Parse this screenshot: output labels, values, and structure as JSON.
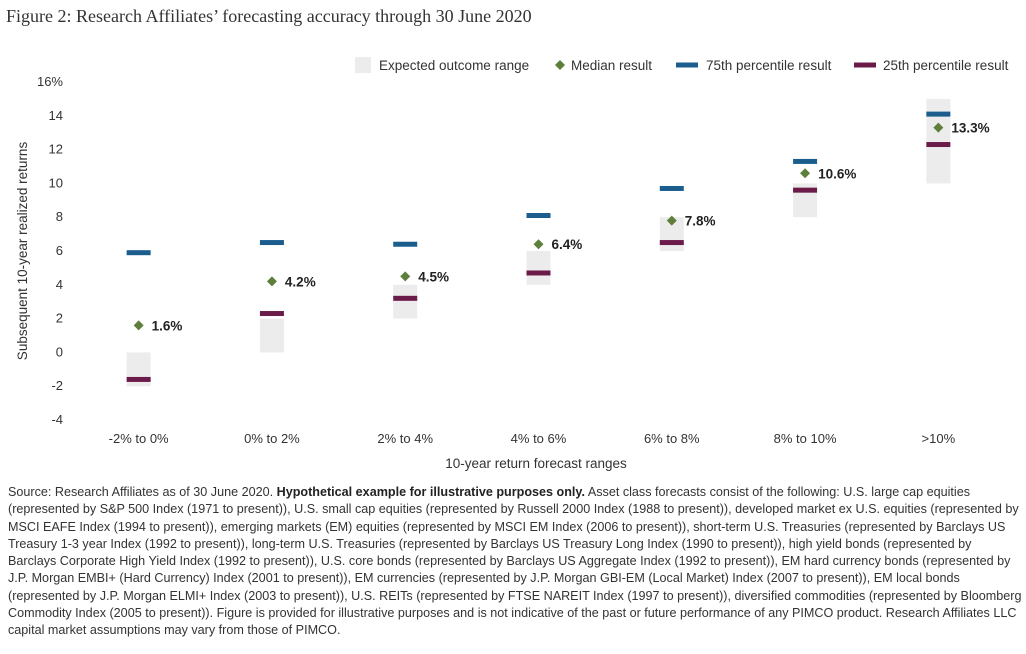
{
  "figure_title": "Figure 2: Research Affiliates’ forecasting accuracy through 30 June 2020",
  "source": {
    "prefix": "Source: Research Affiliates as of 30 June 2020. ",
    "bold": "Hypothetical example for illustrative purposes only.",
    "body": " Asset class forecasts consist of the following: U.S. large cap equities (represented by S&P 500 Index (1971 to present)), U.S. small cap equities (represented by Russell 2000 Index (1988 to present)), developed market ex U.S. equities (represented by MSCI EAFE Index (1994 to present)), emerging markets (EM) equities (represented by MSCI EM Index (2006 to present)), short-term U.S. Treasuries (represented by Barclays US Treasury 1-3 year Index (1992 to present)), long-term U.S. Treasuries (represented by Barclays US Treasury Long Index (1990 to present)), high yield bonds (represented by Barclays Corporate High Yield Index (1992 to present)), U.S. core bonds (represented by Barclays US Aggregate Index (1992 to present)), EM hard currency bonds (represented by J.P. Morgan EMBI+ (Hard Currency) Index (2001 to present)), EM currencies (represented by J.P. Morgan GBI-EM (Local Market) Index (2007 to present)), EM local bonds (represented by J.P. Morgan ELMI+ Index (2003 to present)), U.S. REITs (represented by FTSE NAREIT Index (1997 to present)), diversified commodities (represented by Bloomberg Commodity Index (2005 to present)). Figure is provided for illustrative purposes and is not indicative of the past or future performance of any PIMCO product. Research Affiliates LLC capital market assumptions may vary from those of PIMCO."
  },
  "chart_data": {
    "type": "range",
    "xlabel": "10-year return forecast ranges",
    "ylabel": "Subsequent 10-year realized returns",
    "ylim": [
      -4,
      16
    ],
    "yticks": [
      -4,
      -2,
      0,
      2,
      4,
      6,
      8,
      10,
      12,
      14,
      16
    ],
    "ytick_labels": [
      "-4",
      "-2",
      "0",
      "2",
      "4",
      "6",
      "8",
      "10",
      "12",
      "14",
      "16%"
    ],
    "grid": false,
    "legend_position": "top-right",
    "categories": [
      "-2% to 0%",
      "0% to 2%",
      "2% to 4%",
      "4% to 6%",
      "6% to 8%",
      "8% to 10%",
      ">10%"
    ],
    "series": [
      {
        "name": "Expected outcome range",
        "kind": "range",
        "color": "#ececec",
        "low": [
          -2,
          0,
          2,
          4,
          6,
          8,
          10
        ],
        "high": [
          0,
          2,
          4,
          6,
          8,
          10,
          15
        ]
      },
      {
        "name": "Median result",
        "kind": "marker",
        "color": "#5e7f3b",
        "values": [
          1.6,
          4.2,
          4.5,
          6.4,
          7.8,
          10.6,
          13.3
        ],
        "labels": [
          "1.6%",
          "4.2%",
          "4.5%",
          "6.4%",
          "7.8%",
          "10.6%",
          "13.3%"
        ]
      },
      {
        "name": "75th percentile result",
        "kind": "dash",
        "color": "#1b5e8e",
        "values": [
          5.9,
          6.5,
          6.4,
          8.1,
          9.7,
          11.3,
          14.1
        ]
      },
      {
        "name": "25th percentile result",
        "kind": "dash",
        "color": "#6b1b4a",
        "values": [
          -1.6,
          2.3,
          3.2,
          4.7,
          6.5,
          9.6,
          12.3
        ]
      }
    ]
  }
}
